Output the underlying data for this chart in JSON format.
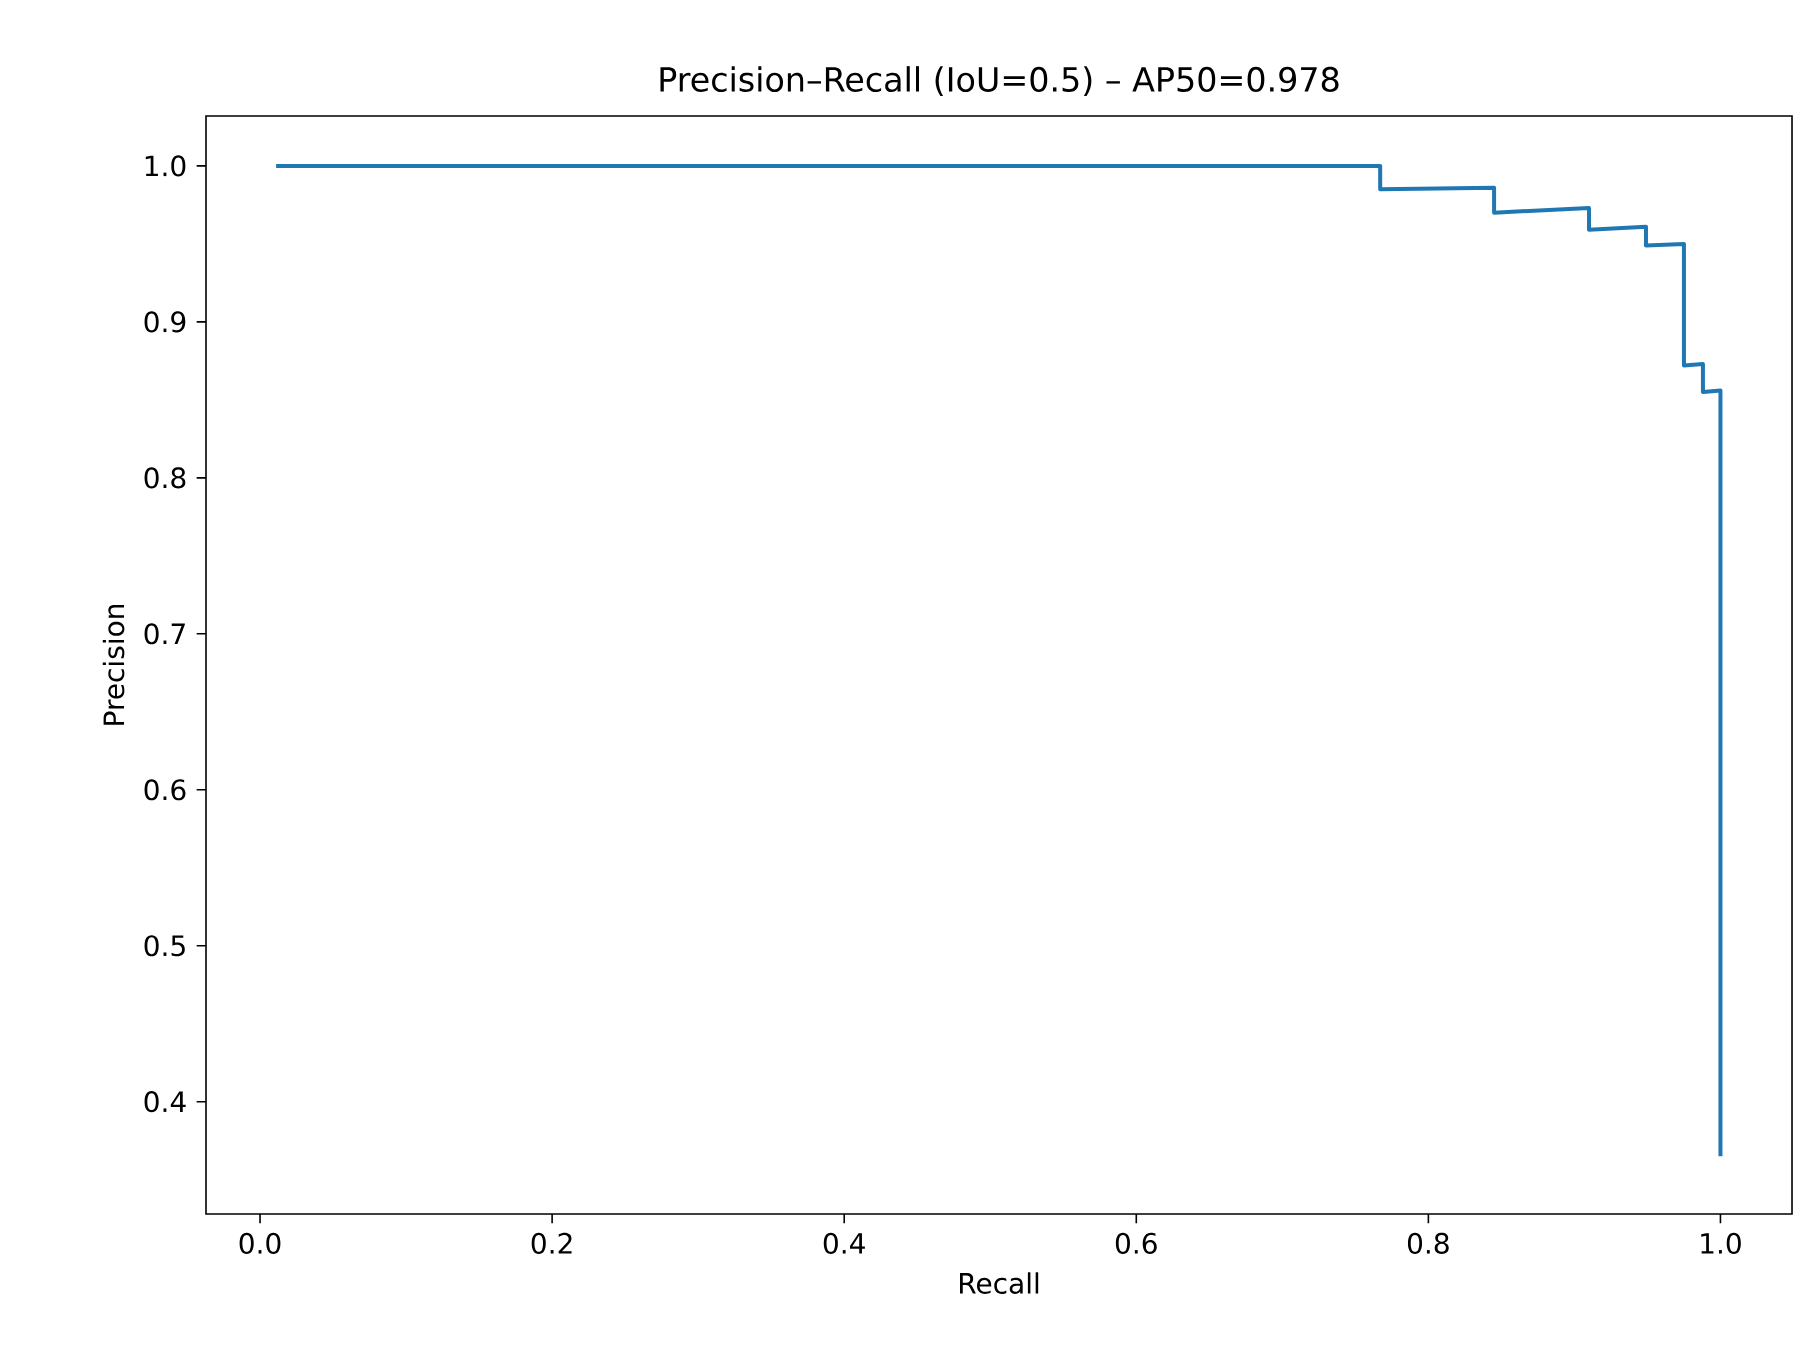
{
  "chart_data": {
    "type": "line",
    "title": "Precision–Recall (IoU=0.5) – AP50=0.978",
    "xlabel": "Recall",
    "ylabel": "Precision",
    "series": [
      {
        "color": "#1f77b4",
        "x": [
          0.011,
          0.767,
          0.767,
          0.845,
          0.845,
          0.91,
          0.91,
          0.949,
          0.949,
          0.975,
          0.975,
          0.988,
          0.988,
          1.0,
          1.0
        ],
        "values": [
          1.0,
          1.0,
          0.985,
          0.986,
          0.97,
          0.973,
          0.959,
          0.961,
          0.949,
          0.95,
          0.872,
          0.873,
          0.855,
          0.856,
          0.365
        ]
      }
    ],
    "xlim": [
      -0.037,
      1.049
    ],
    "ylim": [
      0.328,
      1.032
    ],
    "xticks": [
      {
        "value": 0,
        "label": "0.0"
      },
      0.2,
      0.4,
      0.6,
      0.8,
      {
        "value": 1,
        "label": "1.0"
      }
    ],
    "yticks": [
      0.4,
      0.5,
      0.6,
      0.7,
      0.8,
      0.9,
      {
        "value": 1,
        "label": "1.0"
      }
    ],
    "grid": false,
    "marker": "none",
    "line_style": "solid"
  }
}
